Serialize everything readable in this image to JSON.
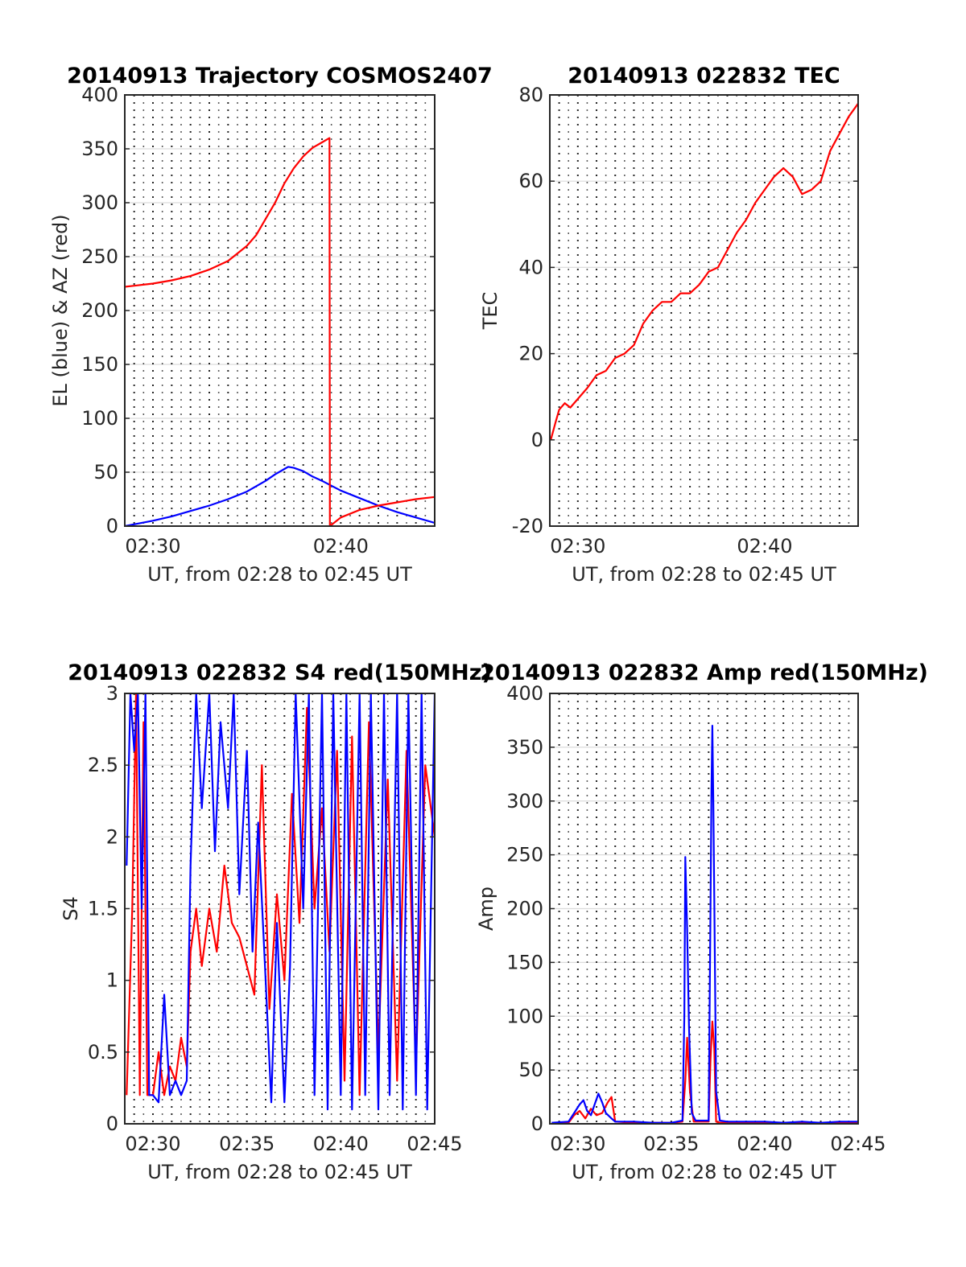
{
  "colors": {
    "el": "#0000ff",
    "az": "#ff0000",
    "grid_h": "#dcdcdc",
    "grid_v": "#262626"
  },
  "chart_data": [
    {
      "id": "trajectory",
      "type": "line",
      "title": "20140913 Trajectory COSMOS2407",
      "xlabel": "UT, from 02:28 to 02:45 UT",
      "ylabel": "EL (blue) & AZ (red)",
      "xlim": [
        28.5,
        45
      ],
      "ylim": [
        0,
        400
      ],
      "xticks": [
        {
          "v": 30,
          "label": "02:30"
        },
        {
          "v": 40,
          "label": "02:40"
        }
      ],
      "yticks": [
        0,
        50,
        100,
        150,
        200,
        250,
        300,
        350,
        400
      ],
      "grid": true,
      "series": [
        {
          "color": "#0000ff",
          "x": [
            28.5,
            30,
            31,
            32,
            33,
            34,
            35,
            36,
            36.5,
            37,
            37.2,
            37.5,
            38,
            38.5,
            39,
            39.5,
            40,
            41,
            42,
            43,
            44,
            45
          ],
          "y": [
            0,
            5,
            9,
            14,
            19,
            25,
            32,
            42,
            48,
            53,
            55,
            54,
            51,
            46,
            42,
            37.5,
            33,
            26,
            19,
            13,
            8,
            3
          ]
        },
        {
          "color": "#ff0000",
          "x": [
            28.5,
            29,
            30,
            31,
            32,
            33,
            34,
            35,
            35.5,
            36,
            36.5,
            37,
            37.5,
            38,
            38.5,
            39,
            39.4,
            39.42,
            40,
            41,
            42,
            43,
            44,
            45
          ],
          "y": [
            222,
            223,
            225,
            228,
            232,
            238,
            246,
            260,
            270,
            285,
            300,
            318,
            332,
            343,
            351,
            356,
            360,
            0,
            8,
            15,
            19,
            22,
            25,
            27
          ]
        }
      ]
    },
    {
      "id": "tec",
      "type": "line",
      "title": "20140913 022832 TEC",
      "xlabel": "UT, from 02:28 to 02:45 UT",
      "ylabel": "TEC",
      "xlim": [
        28.5,
        45
      ],
      "ylim": [
        -20,
        80
      ],
      "xticks": [
        {
          "v": 30,
          "label": "02:30"
        },
        {
          "v": 40,
          "label": "02:40"
        }
      ],
      "yticks": [
        -20,
        0,
        20,
        40,
        60,
        80
      ],
      "grid": true,
      "series": [
        {
          "color": "#ff0000",
          "x": [
            28.55,
            28.8,
            29,
            29.3,
            29.6,
            30,
            30.5,
            31,
            31.5,
            32,
            32.5,
            33,
            33.5,
            34,
            34.5,
            35,
            35.5,
            36,
            36.5,
            37,
            37.5,
            38,
            38.5,
            39,
            39.5,
            40,
            40.5,
            41,
            41.5,
            42,
            42.5,
            43,
            43.5,
            44,
            44.5,
            45
          ],
          "y": [
            0,
            4,
            7,
            8.5,
            7.5,
            9.5,
            12,
            15,
            16,
            19,
            20,
            22,
            27,
            30,
            32,
            32,
            34,
            34,
            36,
            39,
            40,
            44,
            48,
            51,
            55,
            58,
            61,
            63,
            61,
            57,
            58,
            60,
            67,
            71,
            75,
            78
          ]
        }
      ]
    },
    {
      "id": "s4",
      "type": "line",
      "title": "20140913 022832 S4 red(150MHz)",
      "xlabel": "UT, from 02:28 to 02:45 UT",
      "ylabel": "S4",
      "xlim": [
        28.5,
        45
      ],
      "ylim": [
        0,
        3
      ],
      "xticks": [
        {
          "v": 30,
          "label": "02:30"
        },
        {
          "v": 35,
          "label": "02:35"
        },
        {
          "v": 40,
          "label": "02:40"
        },
        {
          "v": 45,
          "label": "02:45"
        }
      ],
      "yticks": [
        0,
        0.5,
        1,
        1.5,
        2,
        2.5,
        3
      ],
      "grid": true,
      "series": [
        {
          "color": "#ff0000",
          "x": [
            28.6,
            28.9,
            29.1,
            29.3,
            29.5,
            29.7,
            30,
            30.3,
            30.6,
            30.9,
            31.2,
            31.5,
            31.8,
            32,
            32.3,
            32.6,
            33,
            33.4,
            33.8,
            34.2,
            34.6,
            35,
            35.4,
            35.8,
            36.2,
            36.6,
            37,
            37.4,
            37.8,
            38.2,
            38.6,
            39,
            39.4,
            39.8,
            40.2,
            40.6,
            41,
            41.5,
            42,
            42.5,
            43,
            43.5,
            44,
            44.5,
            45
          ],
          "y": [
            0.2,
            1.5,
            3,
            0.2,
            2.8,
            0.2,
            0.2,
            0.5,
            0.2,
            0.4,
            0.3,
            0.6,
            0.4,
            1.2,
            1.5,
            1.1,
            1.5,
            1.2,
            1.8,
            1.4,
            1.3,
            1.1,
            0.9,
            2.5,
            0.8,
            1.6,
            1.0,
            2.3,
            1.4,
            2.9,
            1.5,
            2.2,
            1.2,
            2.6,
            0.3,
            2.7,
            0.2,
            2.8,
            0.5,
            2.4,
            0.3,
            2.6,
            0.4,
            2.5,
            2.0
          ]
        },
        {
          "color": "#0000ff",
          "x": [
            28.6,
            28.8,
            29,
            29.2,
            29.4,
            29.6,
            29.8,
            30,
            30.3,
            30.6,
            30.9,
            31.2,
            31.5,
            31.8,
            32,
            32.3,
            32.6,
            33,
            33.3,
            33.6,
            34,
            34.3,
            34.6,
            35,
            35.3,
            35.6,
            36,
            36.3,
            36.6,
            37,
            37.3,
            37.6,
            38,
            38.3,
            38.6,
            39,
            39.3,
            39.6,
            40,
            40.3,
            40.6,
            41,
            41.3,
            41.6,
            42,
            42.3,
            42.6,
            43,
            43.3,
            43.6,
            44,
            44.3,
            44.6,
            45
          ],
          "y": [
            1.8,
            3,
            2.6,
            3,
            1.5,
            3,
            0.2,
            0.2,
            0.15,
            0.9,
            0.2,
            0.3,
            0.2,
            0.3,
            1.8,
            3,
            2.2,
            3,
            1.9,
            2.8,
            2.2,
            3,
            1.6,
            2.6,
            1.2,
            2.1,
            1.0,
            0.15,
            1.4,
            0.15,
            1.1,
            3,
            1.5,
            3,
            0.2,
            3,
            0.1,
            3,
            0.2,
            3,
            0.1,
            3,
            0.2,
            3,
            0.1,
            3,
            0.2,
            3,
            0.1,
            3,
            0.2,
            3,
            0.1,
            3
          ]
        }
      ]
    },
    {
      "id": "amp",
      "type": "line",
      "title": "20140913 022832 Amp red(150MHz)",
      "xlabel": "UT, from 02:28 to 02:45 UT",
      "ylabel": "Amp",
      "xlim": [
        28.5,
        45
      ],
      "ylim": [
        0,
        400
      ],
      "xticks": [
        {
          "v": 30,
          "label": "02:30"
        },
        {
          "v": 35,
          "label": "02:35"
        },
        {
          "v": 40,
          "label": "02:40"
        },
        {
          "v": 45,
          "label": "02:45"
        }
      ],
      "yticks": [
        0,
        50,
        100,
        150,
        200,
        250,
        300,
        350,
        400
      ],
      "grid": true,
      "series": [
        {
          "color": "#ff0000",
          "x": [
            28.6,
            29.5,
            29.8,
            30.1,
            30.4,
            30.7,
            31,
            31.3,
            31.6,
            31.8,
            32,
            33,
            34,
            35,
            35.6,
            35.75,
            35.85,
            36,
            36.2,
            37,
            37.1,
            37.2,
            37.3,
            37.4,
            37.6,
            38,
            40,
            42,
            44,
            45
          ],
          "y": [
            0,
            1,
            8,
            12,
            5,
            14,
            8,
            10,
            20,
            25,
            2,
            1,
            1,
            1,
            2,
            40,
            80,
            30,
            2,
            2,
            60,
            95,
            70,
            2,
            1,
            1,
            1,
            1,
            1,
            1
          ]
        },
        {
          "color": "#0000ff",
          "x": [
            28.6,
            29.5,
            29.8,
            30.1,
            30.3,
            30.5,
            30.7,
            30.9,
            31.1,
            31.3,
            31.5,
            31.8,
            32,
            33,
            34,
            35,
            35.6,
            35.7,
            35.75,
            35.85,
            35.95,
            36.1,
            36.3,
            37,
            37.1,
            37.15,
            37.2,
            37.25,
            37.3,
            37.4,
            37.6,
            38,
            39,
            40,
            41,
            42,
            43,
            44,
            45
          ],
          "y": [
            1,
            2,
            10,
            18,
            22,
            12,
            8,
            18,
            28,
            20,
            10,
            5,
            2,
            2,
            1,
            1,
            3,
            100,
            248,
            180,
            90,
            10,
            3,
            3,
            200,
            310,
            370,
            300,
            210,
            30,
            3,
            2,
            2,
            2,
            1,
            2,
            1,
            2,
            2
          ]
        }
      ]
    }
  ]
}
